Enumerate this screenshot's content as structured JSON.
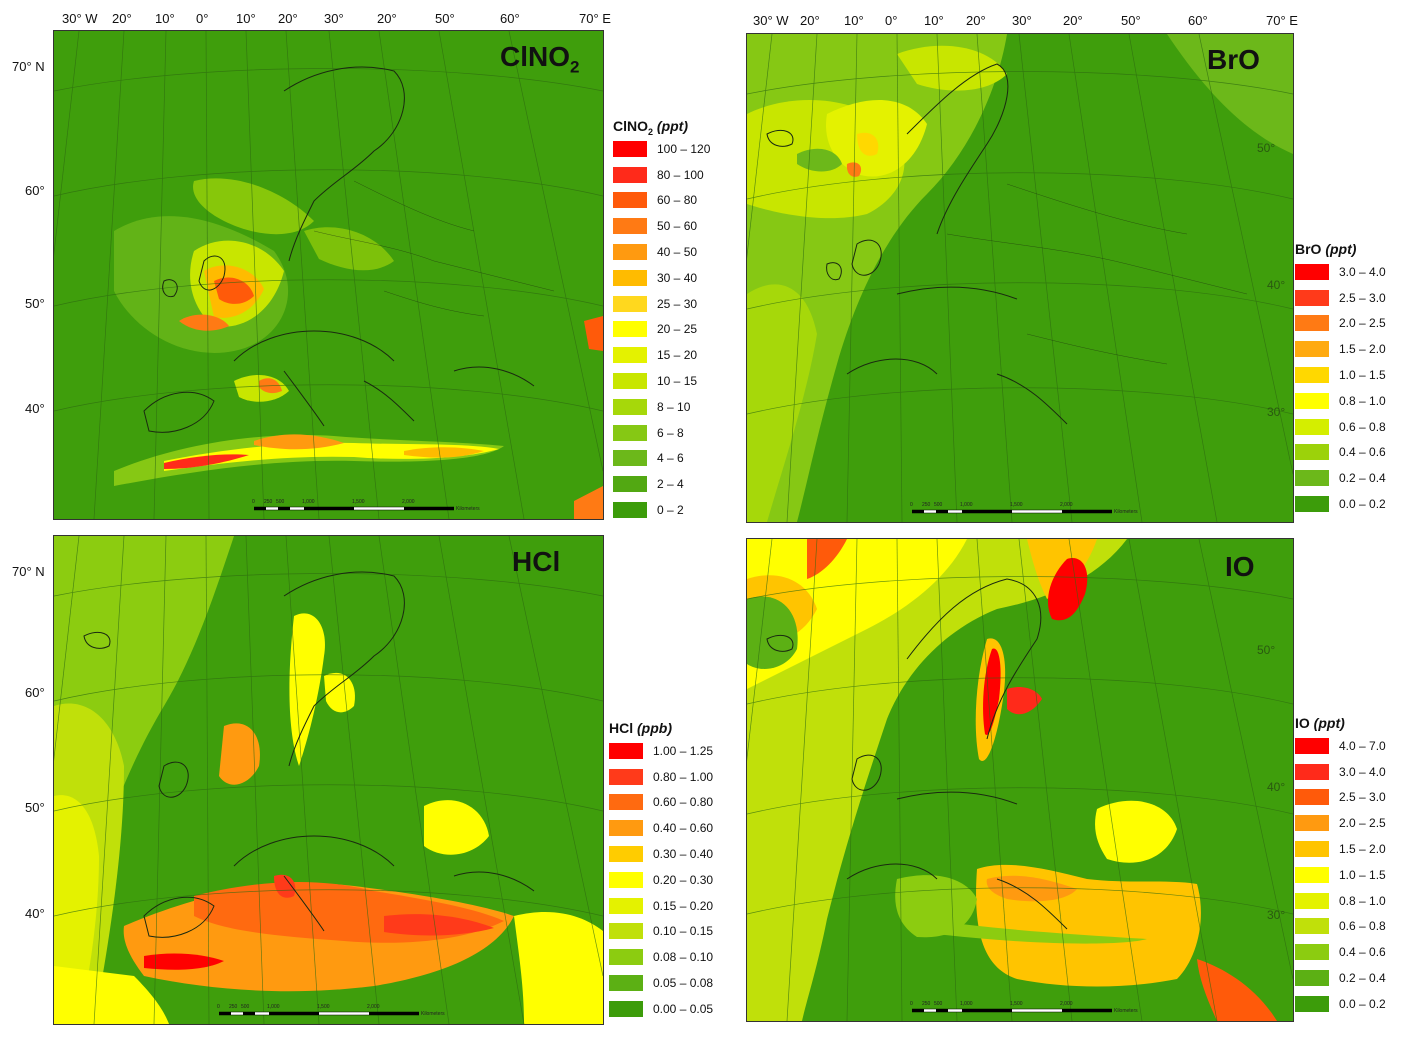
{
  "top_longitude_labels": {
    "left": [
      "30° W",
      "20°",
      "10°",
      "0°",
      "10°",
      "20°",
      "30°",
      "20°",
      "50°",
      "60°",
      "70° E"
    ],
    "right": [
      "30° W",
      "20°",
      "10°",
      "0°",
      "10°",
      "20°",
      "30°",
      "20°",
      "50°",
      "60°",
      "70° E"
    ]
  },
  "latitude_labels": {
    "top_left": [
      "70° N",
      "60°",
      "50°",
      "40°"
    ],
    "bottom_left": [
      "70° N",
      "60°",
      "50°",
      "40°"
    ],
    "top_right_inner": [
      "50°",
      "40°",
      "30°"
    ],
    "bottom_right_inner": [
      "50°",
      "40°",
      "30°"
    ]
  },
  "scale_bar": {
    "ticks": [
      "0",
      "250",
      "500",
      "1,000",
      "1,500",
      "2,000"
    ],
    "unit": "Kilometers"
  },
  "panels": [
    {
      "id": "clno2",
      "title_main": "ClNO",
      "title_sub": "2",
      "legend_title": "ClNO",
      "legend_sub": "2",
      "legend_unit": "(ppt)",
      "classes": [
        {
          "label": "100 – 120",
          "color": "#ff0000"
        },
        {
          "label": "80 – 100",
          "color": "#ff2a1a"
        },
        {
          "label": "60 – 80",
          "color": "#ff5a0a"
        },
        {
          "label": "50 – 60",
          "color": "#ff7a14"
        },
        {
          "label": "40 – 50",
          "color": "#ff9a10"
        },
        {
          "label": "30 – 40",
          "color": "#ffbb00"
        },
        {
          "label": "25 – 30",
          "color": "#ffd81e"
        },
        {
          "label": "20 – 25",
          "color": "#ffff00"
        },
        {
          "label": "15 – 20",
          "color": "#e4f200"
        },
        {
          "label": "10 – 15",
          "color": "#c8e600"
        },
        {
          "label": "8 – 10",
          "color": "#a6d80a"
        },
        {
          "label": "6 – 8",
          "color": "#86c814"
        },
        {
          "label": "4 – 6",
          "color": "#6cb81a"
        },
        {
          "label": "2 – 4",
          "color": "#52a812"
        },
        {
          "label": "0 – 2",
          "color": "#3c9c0a"
        }
      ]
    },
    {
      "id": "bro",
      "title_main": "BrO",
      "title_sub": "",
      "legend_title": "BrO",
      "legend_sub": "",
      "legend_unit": "(ppt)",
      "classes": [
        {
          "label": "3.0 – 4.0",
          "color": "#ff0000"
        },
        {
          "label": "2.5 – 3.0",
          "color": "#ff3a1a"
        },
        {
          "label": "2.0 – 2.5",
          "color": "#ff7a14"
        },
        {
          "label": "1.5 – 2.0",
          "color": "#ffaa10"
        },
        {
          "label": "1.0 – 1.5",
          "color": "#ffd800"
        },
        {
          "label": "0.8 – 1.0",
          "color": "#ffff00"
        },
        {
          "label": "0.6 – 0.8",
          "color": "#d4ee00"
        },
        {
          "label": "0.4 – 0.6",
          "color": "#9cd20a"
        },
        {
          "label": "0.2 – 0.4",
          "color": "#6cb81a"
        },
        {
          "label": "0.0 – 0.2",
          "color": "#3c9c0a"
        }
      ]
    },
    {
      "id": "hcl",
      "title_main": "HCl",
      "title_sub": "",
      "legend_title": "HCl",
      "legend_sub": "",
      "legend_unit": "(ppb)",
      "classes": [
        {
          "label": "1.00 – 1.25",
          "color": "#ff0000"
        },
        {
          "label": "0.80 – 1.00",
          "color": "#ff3a1a"
        },
        {
          "label": "0.60 – 0.80",
          "color": "#ff6a10"
        },
        {
          "label": "0.40 – 0.60",
          "color": "#ff9a10"
        },
        {
          "label": "0.30 – 0.40",
          "color": "#ffcc00"
        },
        {
          "label": "0.20 – 0.30",
          "color": "#ffff00"
        },
        {
          "label": "0.15 – 0.20",
          "color": "#e4f200"
        },
        {
          "label": "0.10 – 0.15",
          "color": "#c0e00a"
        },
        {
          "label": "0.08 – 0.10",
          "color": "#8ccc10"
        },
        {
          "label": "0.05 – 0.08",
          "color": "#5cb014"
        },
        {
          "label": "0.00 – 0.05",
          "color": "#3c9c0a"
        }
      ]
    },
    {
      "id": "io",
      "title_main": "IO",
      "title_sub": "",
      "legend_title": "IO",
      "legend_sub": "",
      "legend_unit": "(ppt)",
      "classes": [
        {
          "label": "4.0 – 7.0",
          "color": "#ff0000"
        },
        {
          "label": "3.0 – 4.0",
          "color": "#ff2a1a"
        },
        {
          "label": "2.5 – 3.0",
          "color": "#ff5a0a"
        },
        {
          "label": "2.0 – 2.5",
          "color": "#ff9a10"
        },
        {
          "label": "1.5 – 2.0",
          "color": "#ffc400"
        },
        {
          "label": "1.0 – 1.5",
          "color": "#ffff00"
        },
        {
          "label": "0.8 – 1.0",
          "color": "#e4f200"
        },
        {
          "label": "0.6 – 0.8",
          "color": "#c0e00a"
        },
        {
          "label": "0.4 – 0.6",
          "color": "#8ccc10"
        },
        {
          "label": "0.2 – 0.4",
          "color": "#5cb014"
        },
        {
          "label": "0.0 – 0.2",
          "color": "#3c9c0a"
        }
      ]
    }
  ]
}
